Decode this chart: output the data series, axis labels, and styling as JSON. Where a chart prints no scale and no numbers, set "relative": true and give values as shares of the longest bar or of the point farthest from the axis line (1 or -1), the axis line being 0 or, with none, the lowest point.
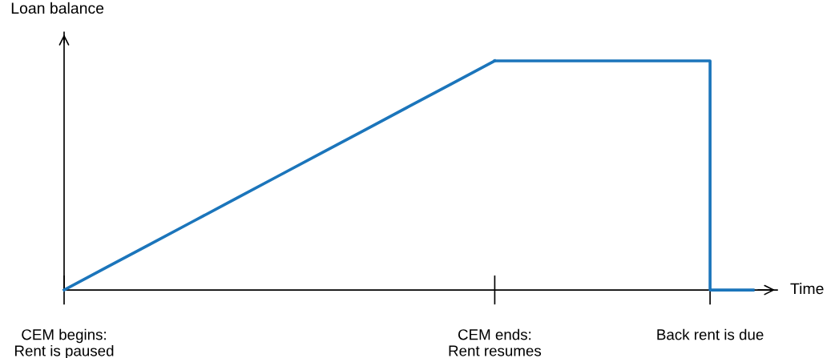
{
  "chart_data": {
    "type": "line",
    "relative": true,
    "xlabel": "Time",
    "ylabel": "Loan balance",
    "categories": [
      "CEM begins:\nRent is paused",
      null,
      null,
      null,
      null,
      null,
      null,
      null,
      null,
      null,
      "CEM ends:\nRent resumes",
      null,
      null,
      null,
      null,
      "Back rent is due",
      null
    ],
    "series": [
      {
        "color": "#1b75bb",
        "values": [
          0,
          0.1,
          0.2,
          0.3,
          0.4,
          0.5,
          0.6,
          0.7,
          0.8,
          0.9,
          1,
          null,
          null,
          null,
          null,
          null,
          null
        ]
      },
      {
        "type": "step",
        "color": "#1b75bb",
        "values": [
          null,
          null,
          null,
          null,
          null,
          null,
          null,
          null,
          null,
          null,
          1,
          1,
          1,
          1,
          1,
          0,
          0
        ]
      }
    ],
    "grid": false,
    "legend": false,
    "marker": "none",
    "line_style": "solid",
    "tick_labels": "x"
  }
}
